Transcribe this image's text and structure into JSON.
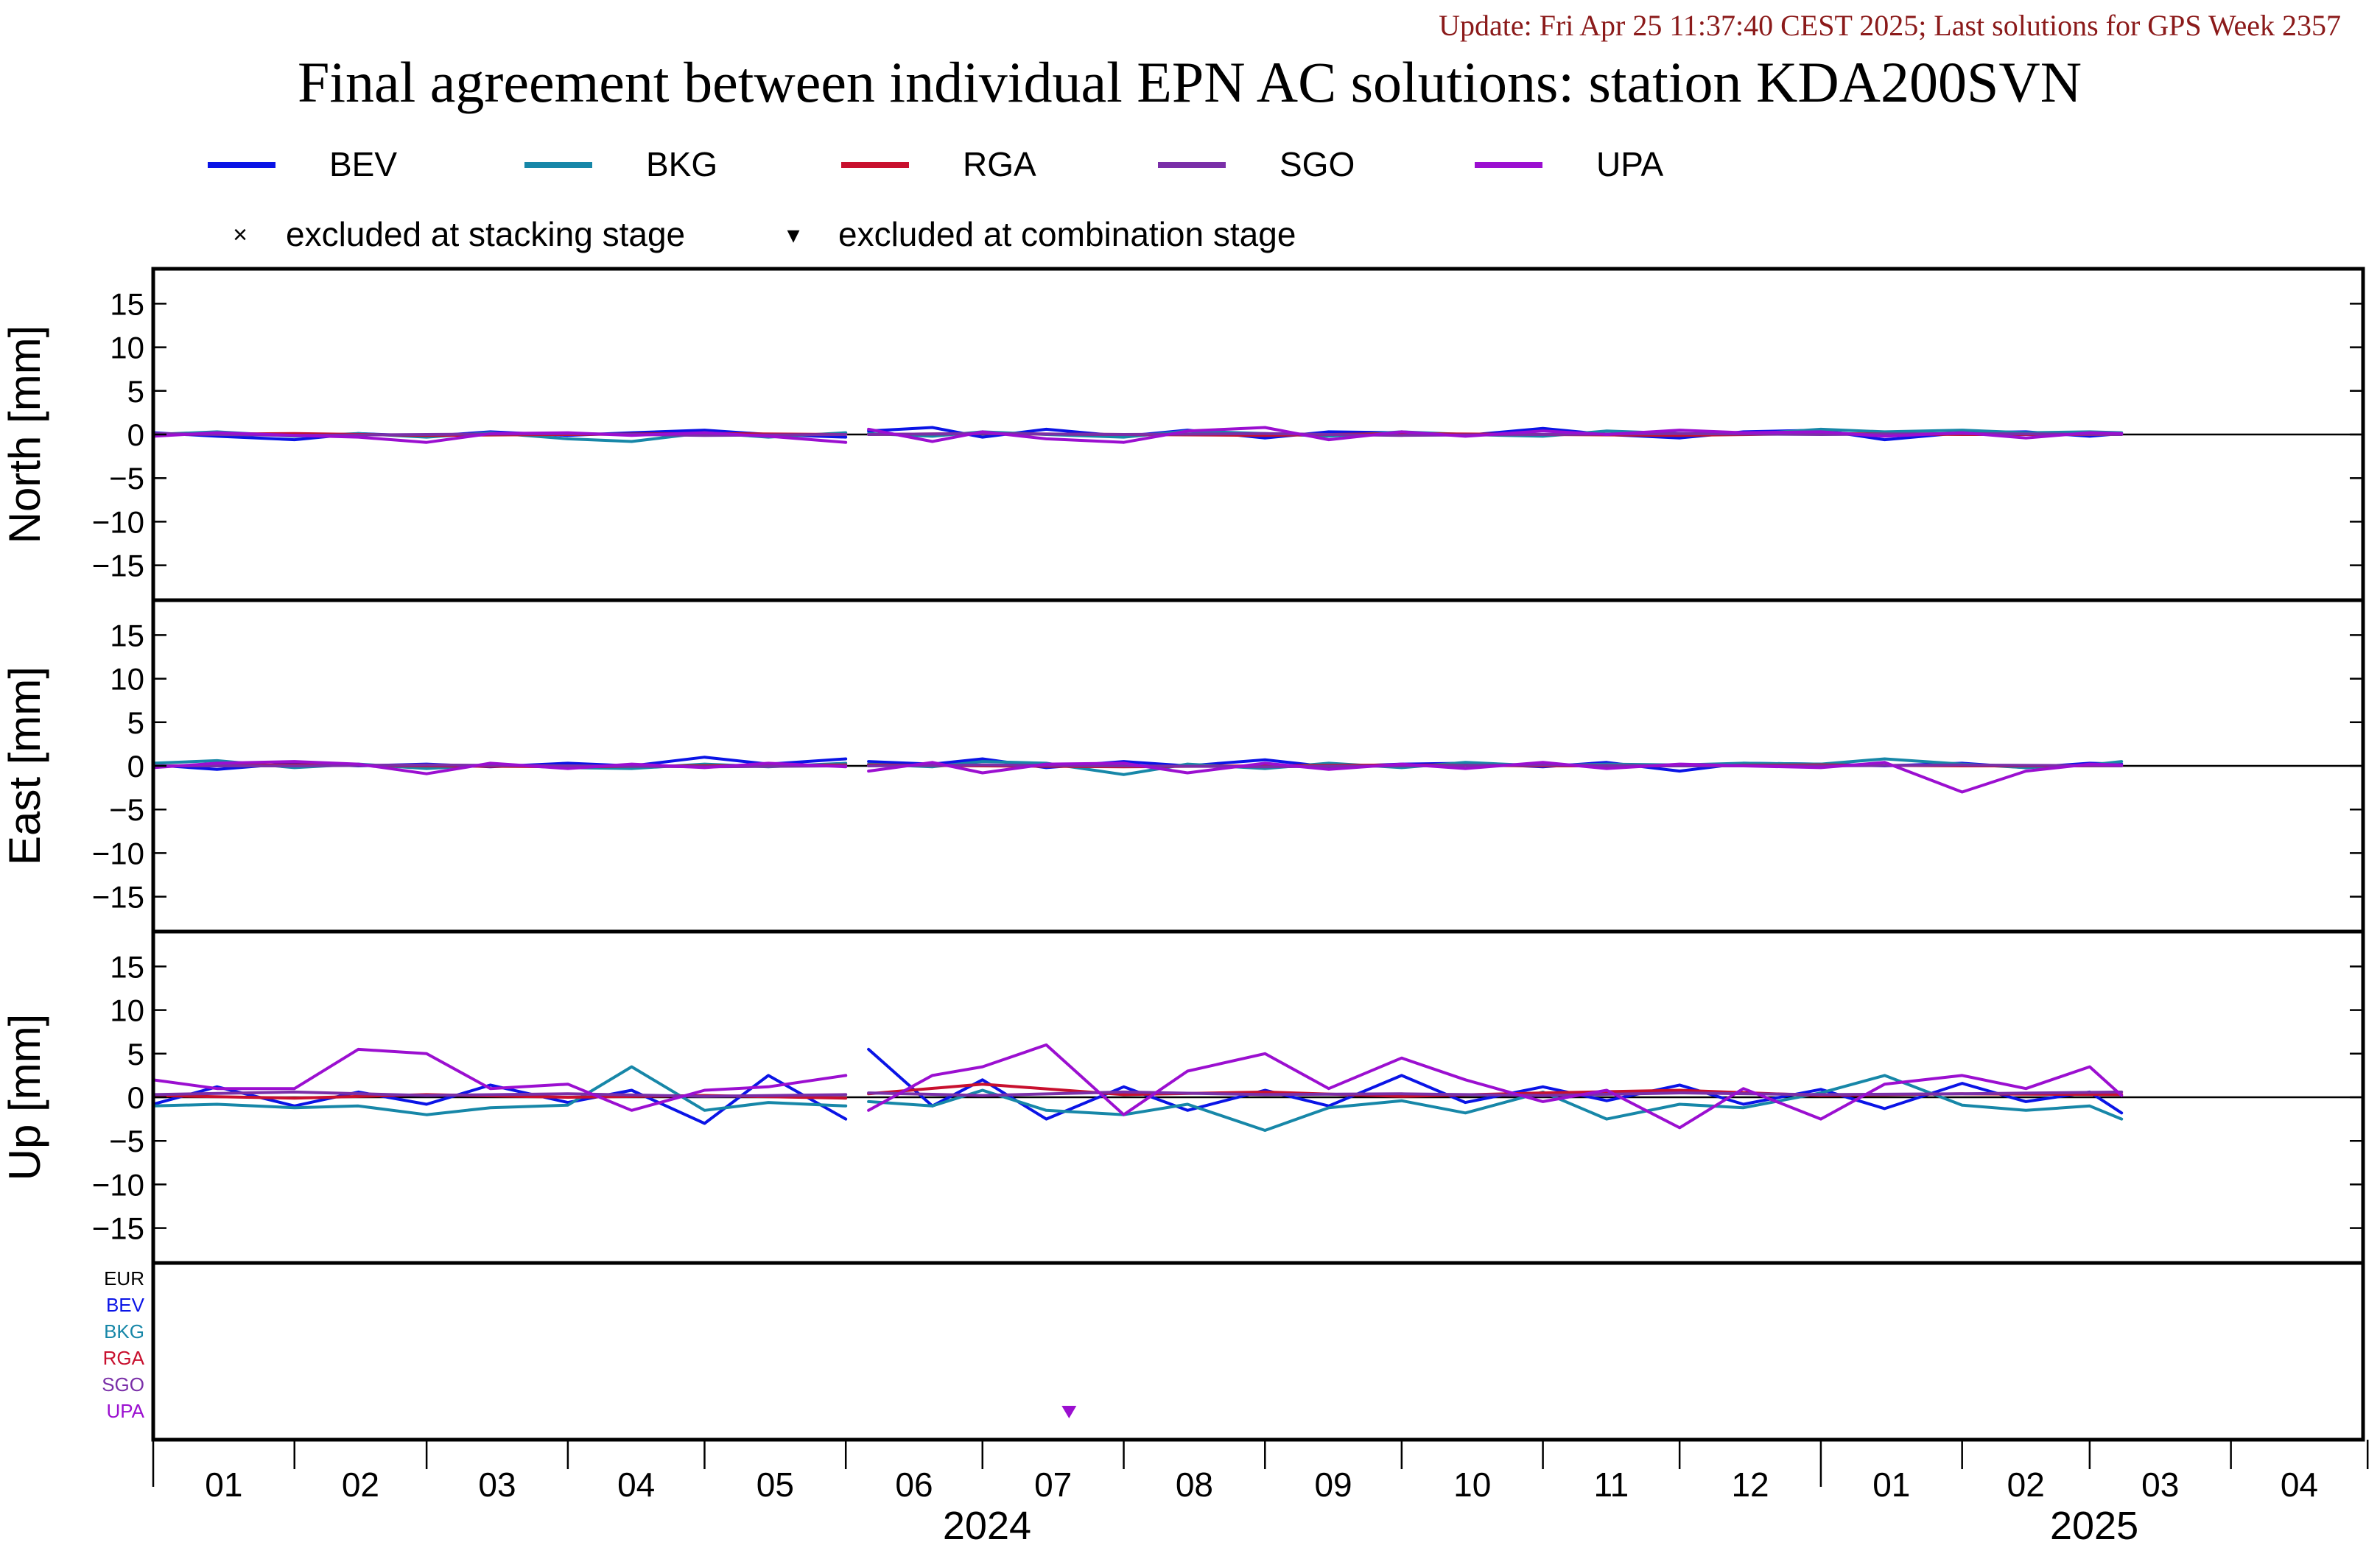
{
  "header": {
    "update_text": "Update: Fri Apr 25 11:37:40 CEST 2025; Last solutions for GPS Week 2357",
    "title": "Final agreement between individual EPN AC solutions: station KDA200SVN"
  },
  "colors": {
    "update_text": "#8b1a1a",
    "BEV": "#0a14e6",
    "BKG": "#1787a8",
    "RGA": "#c8102e",
    "SGO": "#7a2fa8",
    "UPA": "#9b0fd0",
    "EUR": "#000000"
  },
  "legend": {
    "series": [
      {
        "key": "BEV",
        "label": "BEV"
      },
      {
        "key": "BKG",
        "label": "BKG"
      },
      {
        "key": "RGA",
        "label": "RGA"
      },
      {
        "key": "SGO",
        "label": "SGO"
      },
      {
        "key": "UPA",
        "label": "UPA"
      }
    ],
    "stacking_symbol": "×",
    "stacking_label": "excluded at stacking stage",
    "combination_symbol": "▾",
    "combination_label": "excluded at combination stage"
  },
  "chart_data": {
    "type": "line",
    "panels": [
      {
        "key": "north",
        "ylabel": "North [mm]",
        "ylim": [
          -19,
          19
        ],
        "ticks": [
          15,
          10,
          5,
          0,
          -5,
          -10,
          -15
        ],
        "tick_labels": [
          "15",
          "10",
          "5",
          "0",
          "−5",
          "−10",
          "−15"
        ]
      },
      {
        "key": "east",
        "ylabel": "East [mm]",
        "ylim": [
          -19,
          19
        ],
        "ticks": [
          15,
          10,
          5,
          0,
          -5,
          -10,
          -15
        ],
        "tick_labels": [
          "15",
          "10",
          "5",
          "0",
          "−5",
          "−10",
          "−15"
        ]
      },
      {
        "key": "up",
        "ylabel": "Up [mm]",
        "ylim": [
          -19,
          19
        ],
        "ticks": [
          15,
          10,
          5,
          0,
          -5,
          -10,
          -15
        ],
        "tick_labels": [
          "15",
          "10",
          "5",
          "0",
          "−5",
          "−10",
          "−15"
        ]
      }
    ],
    "x_axis": {
      "start": "2024-01-01",
      "end": "2025-04-30",
      "month_labels": [
        "01",
        "02",
        "03",
        "04",
        "05",
        "06",
        "07",
        "08",
        "09",
        "10",
        "11",
        "12",
        "01",
        "02",
        "03",
        "04"
      ],
      "year_labels": [
        "2024",
        "2025"
      ]
    },
    "series": [
      {
        "name": "BEV",
        "segments": [
          {
            "dates": [
              "2024-01-01",
              "2024-01-15",
              "2024-02-01",
              "2024-02-15",
              "2024-03-01",
              "2024-03-15",
              "2024-04-01",
              "2024-04-15",
              "2024-05-01",
              "2024-05-15",
              "2024-06-01"
            ],
            "north": [
              0.2,
              -0.2,
              -0.6,
              0.1,
              -0.2,
              0.3,
              -0.1,
              0.2,
              0.5,
              0.0,
              -0.3
            ],
            "east": [
              0.1,
              -0.4,
              0.3,
              0.0,
              0.2,
              -0.1,
              0.3,
              0.0,
              1.0,
              0.2,
              0.8
            ],
            "up": [
              -0.8,
              1.2,
              -1.0,
              0.6,
              -0.8,
              1.4,
              -0.6,
              0.8,
              -3.0,
              2.5,
              -2.5
            ]
          },
          {
            "dates": [
              "2024-06-06",
              "2024-06-20",
              "2024-07-01",
              "2024-07-15",
              "2024-08-01",
              "2024-08-15",
              "2024-09-01",
              "2024-09-15",
              "2024-10-01",
              "2024-10-15",
              "2024-11-01",
              "2024-11-15",
              "2024-12-01",
              "2024-12-15",
              "2025-01-01",
              "2025-01-15",
              "2025-02-01",
              "2025-02-15",
              "2025-03-01",
              "2025-03-08"
            ],
            "north": [
              0.4,
              0.8,
              -0.3,
              0.6,
              -0.2,
              0.5,
              -0.4,
              0.3,
              0.2,
              -0.1,
              0.7,
              0.0,
              -0.4,
              0.3,
              0.5,
              -0.6,
              0.2,
              0.3,
              -0.2,
              0.1
            ],
            "east": [
              0.5,
              0.2,
              0.8,
              -0.2,
              0.5,
              0.0,
              0.7,
              -0.1,
              0.2,
              0.3,
              -0.1,
              0.4,
              -0.6,
              0.3,
              0.2,
              0.0,
              0.3,
              -0.2,
              0.3,
              0.2
            ],
            "up": [
              5.5,
              -1.0,
              2.0,
              -2.5,
              1.2,
              -1.5,
              0.8,
              -1.0,
              2.5,
              -0.6,
              1.2,
              -0.4,
              1.4,
              -0.8,
              0.9,
              -1.3,
              1.6,
              -0.5,
              0.6,
              -1.8
            ]
          }
        ]
      },
      {
        "name": "BKG",
        "segments": [
          {
            "dates": [
              "2024-01-01",
              "2024-01-15",
              "2024-02-01",
              "2024-02-15",
              "2024-03-01",
              "2024-03-15",
              "2024-04-01",
              "2024-04-15",
              "2024-05-01",
              "2024-05-15",
              "2024-06-01"
            ],
            "north": [
              0.0,
              0.3,
              -0.2,
              0.1,
              -0.3,
              0.2,
              -0.5,
              -0.8,
              0.2,
              -0.3,
              0.2
            ],
            "east": [
              0.3,
              0.6,
              -0.2,
              0.2,
              -0.3,
              0.1,
              -0.2,
              -0.3,
              0.2,
              -0.1,
              0.3
            ],
            "up": [
              -1.0,
              -0.8,
              -1.2,
              -1.0,
              -2.0,
              -1.2,
              -0.9,
              3.5,
              -1.5,
              -0.6,
              -1.0
            ]
          },
          {
            "dates": [
              "2024-06-06",
              "2024-06-20",
              "2024-07-01",
              "2024-07-15",
              "2024-08-01",
              "2024-08-15",
              "2024-09-01",
              "2024-09-15",
              "2024-10-01",
              "2024-10-15",
              "2024-11-01",
              "2024-11-15",
              "2024-12-01",
              "2024-12-15",
              "2025-01-01",
              "2025-01-15",
              "2025-02-01",
              "2025-02-15",
              "2025-03-01",
              "2025-03-08"
            ],
            "north": [
              0.1,
              -0.2,
              0.3,
              0.0,
              -0.3,
              0.4,
              0.1,
              -0.2,
              0.3,
              0.0,
              -0.2,
              0.4,
              0.1,
              0.0,
              0.6,
              0.3,
              0.5,
              0.2,
              0.3,
              0.2
            ],
            "east": [
              0.2,
              -0.1,
              0.5,
              0.3,
              -1.0,
              0.2,
              -0.3,
              0.3,
              -0.2,
              0.4,
              0.0,
              0.2,
              0.1,
              0.3,
              0.2,
              0.8,
              0.2,
              -0.2,
              0.1,
              0.5
            ],
            "up": [
              -0.5,
              -1.0,
              0.8,
              -1.5,
              -2.0,
              -0.8,
              -3.8,
              -1.2,
              -0.4,
              -1.8,
              0.6,
              -2.5,
              -0.8,
              -1.2,
              0.5,
              2.5,
              -0.9,
              -1.5,
              -1.0,
              -2.5
            ]
          }
        ]
      },
      {
        "name": "RGA",
        "segments": [
          {
            "dates": [
              "2024-01-01",
              "2024-02-01",
              "2024-03-01",
              "2024-04-01",
              "2024-05-01",
              "2024-06-01"
            ],
            "north": [
              0.0,
              0.1,
              -0.1,
              0.0,
              0.1,
              0.0
            ],
            "east": [
              0.0,
              0.1,
              0.0,
              -0.1,
              0.0,
              0.1
            ],
            "up": [
              0.2,
              -0.1,
              0.3,
              0.0,
              0.2,
              -0.1
            ]
          },
          {
            "dates": [
              "2024-06-06",
              "2024-07-01",
              "2024-08-01",
              "2024-09-01",
              "2024-10-01",
              "2024-11-01",
              "2024-12-01",
              "2025-01-01",
              "2025-02-01",
              "2025-03-08"
            ],
            "north": [
              0.0,
              0.1,
              0.0,
              -0.1,
              0.1,
              0.0,
              -0.1,
              0.1,
              0.0,
              0.0
            ],
            "east": [
              0.1,
              0.0,
              -0.1,
              0.0,
              0.1,
              0.0,
              0.0,
              0.1,
              0.0,
              0.0
            ],
            "up": [
              0.4,
              1.5,
              0.3,
              0.6,
              0.1,
              0.5,
              0.8,
              0.2,
              0.4,
              0.3
            ]
          }
        ]
      },
      {
        "name": "SGO",
        "segments": [
          {
            "dates": [
              "2024-01-01",
              "2024-02-01",
              "2024-03-01",
              "2024-04-01",
              "2024-05-01",
              "2024-06-01"
            ],
            "north": [
              0.1,
              -0.1,
              0.0,
              0.1,
              -0.1,
              0.0
            ],
            "east": [
              0.0,
              0.0,
              0.1,
              0.0,
              -0.1,
              0.0
            ],
            "up": [
              0.3,
              0.6,
              0.2,
              0.4,
              0.1,
              0.3
            ]
          },
          {
            "dates": [
              "2024-06-06",
              "2024-07-01",
              "2024-08-01",
              "2024-09-01",
              "2024-10-01",
              "2024-11-01",
              "2024-12-01",
              "2025-01-01",
              "2025-02-01",
              "2025-03-08"
            ],
            "north": [
              0.0,
              0.1,
              0.0,
              0.1,
              -0.1,
              0.0,
              0.1,
              0.0,
              0.1,
              0.0
            ],
            "east": [
              0.0,
              0.1,
              0.0,
              -0.1,
              0.0,
              0.1,
              0.0,
              0.0,
              0.1,
              0.0
            ],
            "up": [
              0.5,
              0.2,
              0.6,
              0.3,
              0.4,
              0.2,
              0.5,
              0.3,
              0.4,
              0.6
            ]
          }
        ]
      },
      {
        "name": "UPA",
        "segments": [
          {
            "dates": [
              "2024-01-01",
              "2024-01-15",
              "2024-02-01",
              "2024-02-15",
              "2024-03-01",
              "2024-03-15",
              "2024-04-01",
              "2024-04-15",
              "2024-05-01",
              "2024-05-15",
              "2024-06-01"
            ],
            "north": [
              -0.2,
              0.2,
              -0.1,
              -0.3,
              -0.9,
              0.1,
              0.2,
              -0.1,
              0.2,
              -0.2,
              -0.9
            ],
            "east": [
              -0.2,
              0.3,
              0.5,
              0.2,
              -0.9,
              0.3,
              -0.3,
              0.2,
              -0.2,
              0.3,
              -0.1
            ],
            "up": [
              2.0,
              1.0,
              1.0,
              5.5,
              5.0,
              1.0,
              1.5,
              -1.5,
              0.8,
              1.2,
              2.5
            ]
          },
          {
            "dates": [
              "2024-06-06",
              "2024-06-20",
              "2024-07-01",
              "2024-07-15",
              "2024-08-01",
              "2024-08-15",
              "2024-09-01",
              "2024-09-15",
              "2024-10-01",
              "2024-10-15",
              "2024-11-01",
              "2024-11-15",
              "2024-12-01",
              "2024-12-15",
              "2025-01-01",
              "2025-01-15",
              "2025-02-01",
              "2025-02-15",
              "2025-03-01",
              "2025-03-08"
            ],
            "north": [
              0.6,
              -0.8,
              0.3,
              -0.5,
              -0.9,
              0.4,
              0.8,
              -0.6,
              0.3,
              -0.2,
              0.4,
              0.0,
              0.5,
              0.2,
              0.3,
              -0.2,
              0.2,
              -0.4,
              0.2,
              0.1
            ],
            "east": [
              -0.6,
              0.4,
              -0.8,
              0.2,
              0.3,
              -0.8,
              0.3,
              -0.4,
              0.2,
              -0.3,
              0.4,
              -0.3,
              0.2,
              0.0,
              -0.2,
              0.4,
              -3.0,
              -0.6,
              0.2,
              0.1
            ],
            "up": [
              -1.5,
              2.5,
              3.5,
              6.0,
              -2.0,
              3.0,
              5.0,
              1.0,
              4.5,
              2.0,
              -0.5,
              0.8,
              -3.5,
              1.0,
              -2.5,
              1.5,
              2.5,
              1.0,
              3.5,
              0.2
            ]
          }
        ]
      }
    ],
    "exclusion_panel": {
      "row_labels": [
        "EUR",
        "BEV",
        "BKG",
        "RGA",
        "SGO",
        "UPA"
      ],
      "excluded_combination": [
        {
          "row": "UPA",
          "date": "2024-07-20"
        }
      ],
      "excluded_stacking": []
    }
  }
}
